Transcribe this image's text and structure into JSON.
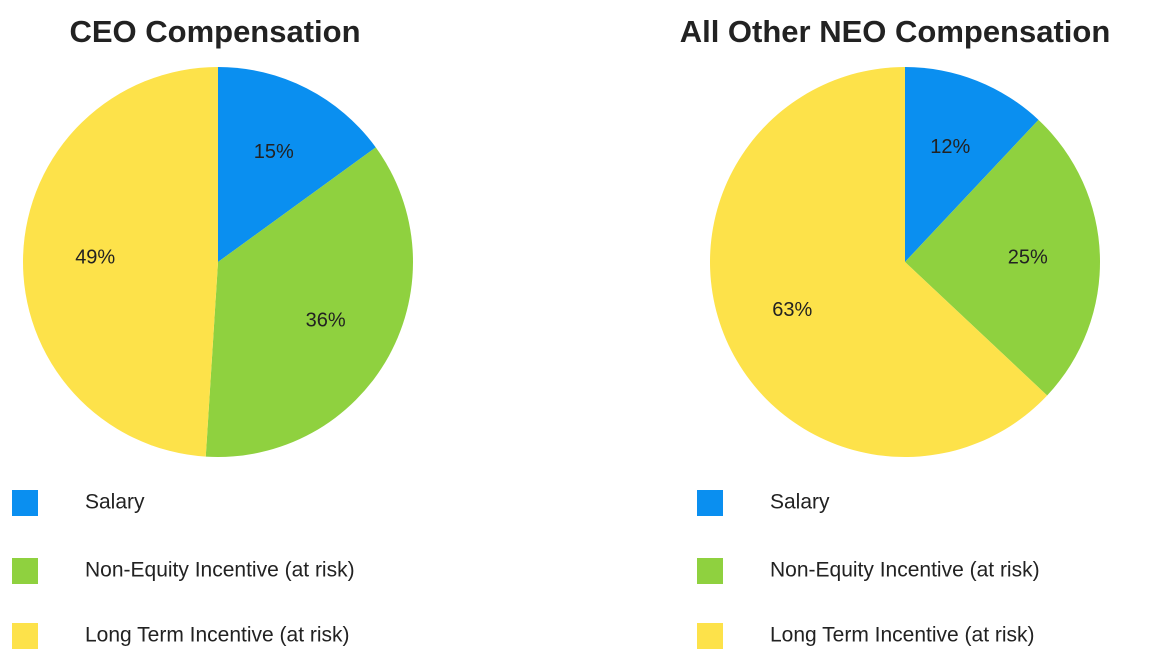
{
  "chart_data": [
    {
      "type": "pie",
      "title": "CEO Compensation",
      "categories": [
        "Salary",
        "Non-Equity Incentive (at risk)",
        "Long Term Incentive (at risk)"
      ],
      "values": [
        15,
        36,
        49
      ],
      "value_labels": [
        "15%",
        "36%",
        "49%"
      ],
      "colors": [
        "#0a8ff0",
        "#8fd13f",
        "#fde24a"
      ]
    },
    {
      "type": "pie",
      "title": "All Other NEO Compensation",
      "categories": [
        "Salary",
        "Non-Equity Incentive (at risk)",
        "Long Term Incentive (at risk)"
      ],
      "values": [
        12,
        25,
        63
      ],
      "value_labels": [
        "12%",
        "25%",
        "63%"
      ],
      "colors": [
        "#0a8ff0",
        "#8fd13f",
        "#fde24a"
      ]
    }
  ]
}
